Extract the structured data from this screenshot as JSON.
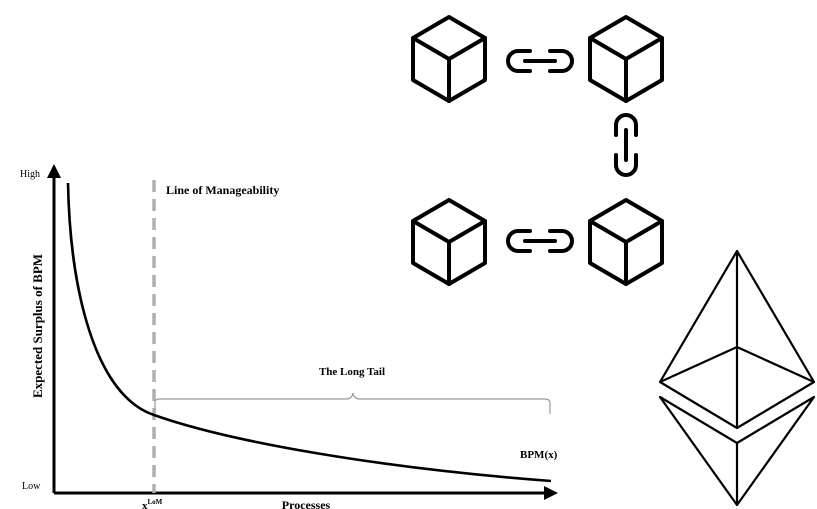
{
  "chart": {
    "y_axis_title": "Expected Surplus of BPM",
    "x_axis_title": "Processes",
    "y_tick_high": "High",
    "y_tick_low": "Low",
    "line_of_manageability_label": "Line of Manageability",
    "x_lom_label_base": "x",
    "x_lom_label_sup": "LoM",
    "long_tail_label": "The Long Tail",
    "curve_label": "BPM(x)"
  },
  "icons": {
    "blockchain": "blockchain-icon",
    "ethereum": "ethereum-logo"
  },
  "colors": {
    "ink": "#000000",
    "dashed_line": "#b0b0b0",
    "brace": "#9a9a9a"
  }
}
